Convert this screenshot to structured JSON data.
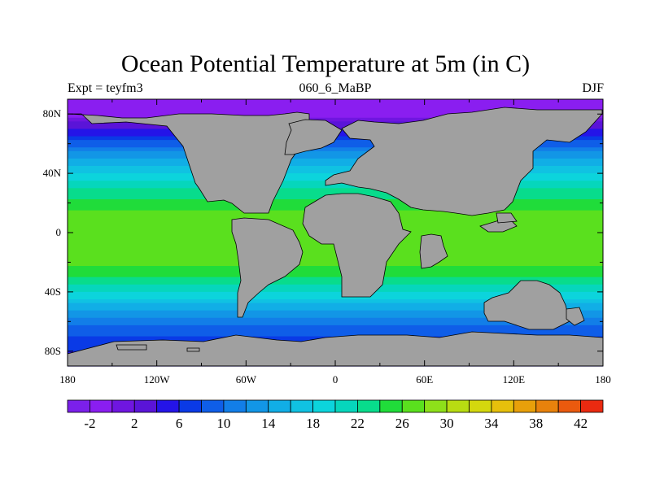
{
  "chart_data": {
    "type": "heatmap",
    "title": "Ocean Potential Temperature at 5m (in C)",
    "left_string": "Expt = teyfm3",
    "center_string": "060_6_MaBP",
    "right_string": "DJF",
    "x_range": [
      -180,
      180
    ],
    "y_range": [
      -90,
      90
    ],
    "x_ticks": [
      {
        "value": -180,
        "label": "180"
      },
      {
        "value": -120,
        "label": "120W"
      },
      {
        "value": -60,
        "label": "60W"
      },
      {
        "value": 0,
        "label": "0"
      },
      {
        "value": 60,
        "label": "60E"
      },
      {
        "value": 120,
        "label": "120E"
      },
      {
        "value": 180,
        "label": "180"
      }
    ],
    "y_ticks": [
      {
        "value": 80,
        "label": "80N"
      },
      {
        "value": 40,
        "label": "40N"
      },
      {
        "value": 0,
        "label": "0"
      },
      {
        "value": -40,
        "label": "40S"
      },
      {
        "value": -80,
        "label": "80S"
      }
    ],
    "zonal_mean_profile": {
      "latitudes": [
        90,
        80,
        70,
        60,
        50,
        40,
        30,
        20,
        10,
        0,
        -10,
        -20,
        -30,
        -40,
        -50,
        -60,
        -70,
        -80,
        -90
      ],
      "temperature_c": [
        -2,
        -1,
        4,
        9,
        14,
        18,
        22,
        25,
        27,
        27,
        28,
        27,
        24,
        20,
        15,
        11,
        8,
        6,
        5
      ]
    },
    "colorbar": {
      "levels": [
        -4,
        -2,
        0,
        2,
        4,
        6,
        8,
        10,
        12,
        14,
        16,
        18,
        20,
        22,
        24,
        26,
        28,
        30,
        32,
        34,
        36,
        38,
        40,
        42,
        44
      ],
      "colors": [
        "#7b20ea",
        "#8a1ef0",
        "#6f16e0",
        "#5a14d8",
        "#2414e8",
        "#0a3ae6",
        "#0f5ee8",
        "#127ee8",
        "#1296e6",
        "#11aee6",
        "#10c2e2",
        "#0cd4dc",
        "#06d6bc",
        "#08dc8c",
        "#20dc3a",
        "#5ae01e",
        "#8ee01a",
        "#b8dc12",
        "#d4d80e",
        "#e6c00c",
        "#e8a00a",
        "#e8820c",
        "#ea5a0e",
        "#ea2a10"
      ],
      "labels": [
        "-2",
        "2",
        "6",
        "10",
        "14",
        "18",
        "22",
        "26",
        "30",
        "34",
        "38",
        "42"
      ],
      "label_values": [
        -2,
        2,
        6,
        10,
        14,
        18,
        22,
        26,
        30,
        34,
        38,
        42
      ]
    },
    "land_color": "#a0a0a0"
  }
}
